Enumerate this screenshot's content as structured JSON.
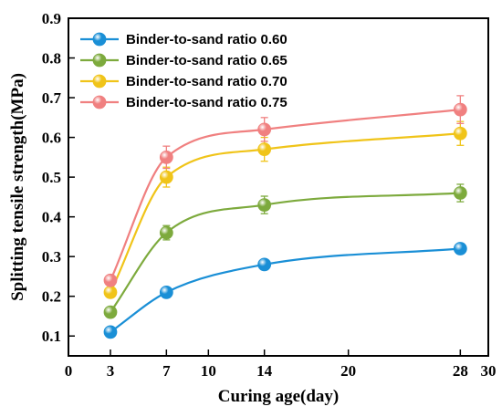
{
  "chart_data": {
    "type": "line",
    "xlabel": "Curing age(day)",
    "ylabel": "Splitting tensile strength(MPa)",
    "xlim": [
      0,
      30
    ],
    "ylim": [
      0.05,
      0.9
    ],
    "xticks": [
      0,
      3,
      7,
      10,
      14,
      20,
      28,
      30
    ],
    "yticks": [
      0.1,
      0.2,
      0.3,
      0.4,
      0.5,
      0.6,
      0.7,
      0.8,
      0.9
    ],
    "x": [
      3,
      7,
      14,
      28
    ],
    "legend_position": "top-left",
    "grid": false,
    "series": [
      {
        "name": "Binder-to-sand ratio 0.60",
        "values": [
          0.11,
          0.21,
          0.28,
          0.32
        ],
        "errors": [
          0.008,
          0.01,
          0.01,
          0.012
        ],
        "color": "#1a8fd6"
      },
      {
        "name": "Binder-to-sand ratio 0.65",
        "values": [
          0.16,
          0.36,
          0.43,
          0.46
        ],
        "errors": [
          0.01,
          0.018,
          0.022,
          0.022
        ],
        "color": "#7daa3d"
      },
      {
        "name": "Binder-to-sand ratio 0.70",
        "values": [
          0.21,
          0.5,
          0.57,
          0.61
        ],
        "errors": [
          0.012,
          0.025,
          0.03,
          0.03
        ],
        "color": "#f0c419"
      },
      {
        "name": "Binder-to-sand ratio 0.75",
        "values": [
          0.24,
          0.55,
          0.62,
          0.67
        ],
        "errors": [
          0.012,
          0.028,
          0.03,
          0.035
        ],
        "color": "#f08080"
      }
    ]
  }
}
